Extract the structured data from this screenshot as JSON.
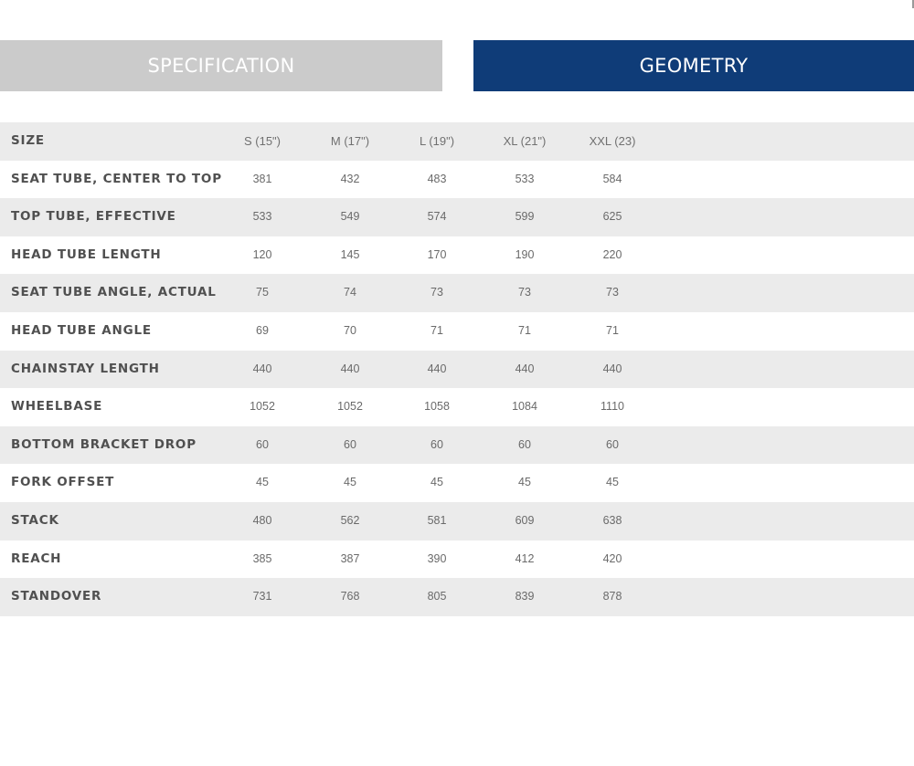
{
  "tabs": {
    "specification": "SPECIFICATION",
    "geometry": "GEOMETRY",
    "active": "geometry"
  },
  "colors": {
    "active_tab": "#0f3c78",
    "inactive_tab": "#cbcbcb",
    "row_shade": "#ebebeb"
  },
  "table": {
    "header": {
      "label": "SIZE",
      "sizes": [
        "S (15\")",
        "M (17\")",
        "L (19\")",
        "XL (21\")",
        "XXL (23)"
      ]
    },
    "rows": [
      {
        "label": "SEAT TUBE, CENTER TO TOP",
        "values": [
          "381",
          "432",
          "483",
          "533",
          "584"
        ]
      },
      {
        "label": "TOP TUBE, EFFECTIVE",
        "values": [
          "533",
          "549",
          "574",
          "599",
          "625"
        ]
      },
      {
        "label": "HEAD TUBE LENGTH",
        "values": [
          "120",
          "145",
          "170",
          "190",
          "220"
        ]
      },
      {
        "label": "SEAT TUBE ANGLE, ACTUAL",
        "values": [
          "75",
          "74",
          "73",
          "73",
          "73"
        ]
      },
      {
        "label": "HEAD TUBE ANGLE",
        "values": [
          "69",
          "70",
          "71",
          "71",
          "71"
        ]
      },
      {
        "label": "CHAINSTAY LENGTH",
        "values": [
          "440",
          "440",
          "440",
          "440",
          "440"
        ]
      },
      {
        "label": "WHEELBASE",
        "values": [
          "1052",
          "1052",
          "1058",
          "1084",
          "1110"
        ]
      },
      {
        "label": "BOTTOM BRACKET DROP",
        "values": [
          "60",
          "60",
          "60",
          "60",
          "60"
        ]
      },
      {
        "label": "FORK OFFSET",
        "values": [
          "45",
          "45",
          "45",
          "45",
          "45"
        ]
      },
      {
        "label": "STACK",
        "values": [
          "480",
          "562",
          "581",
          "609",
          "638"
        ]
      },
      {
        "label": "REACH",
        "values": [
          "385",
          "387",
          "390",
          "412",
          "420"
        ]
      },
      {
        "label": "STANDOVER",
        "values": [
          "731",
          "768",
          "805",
          "839",
          "878"
        ]
      }
    ]
  }
}
